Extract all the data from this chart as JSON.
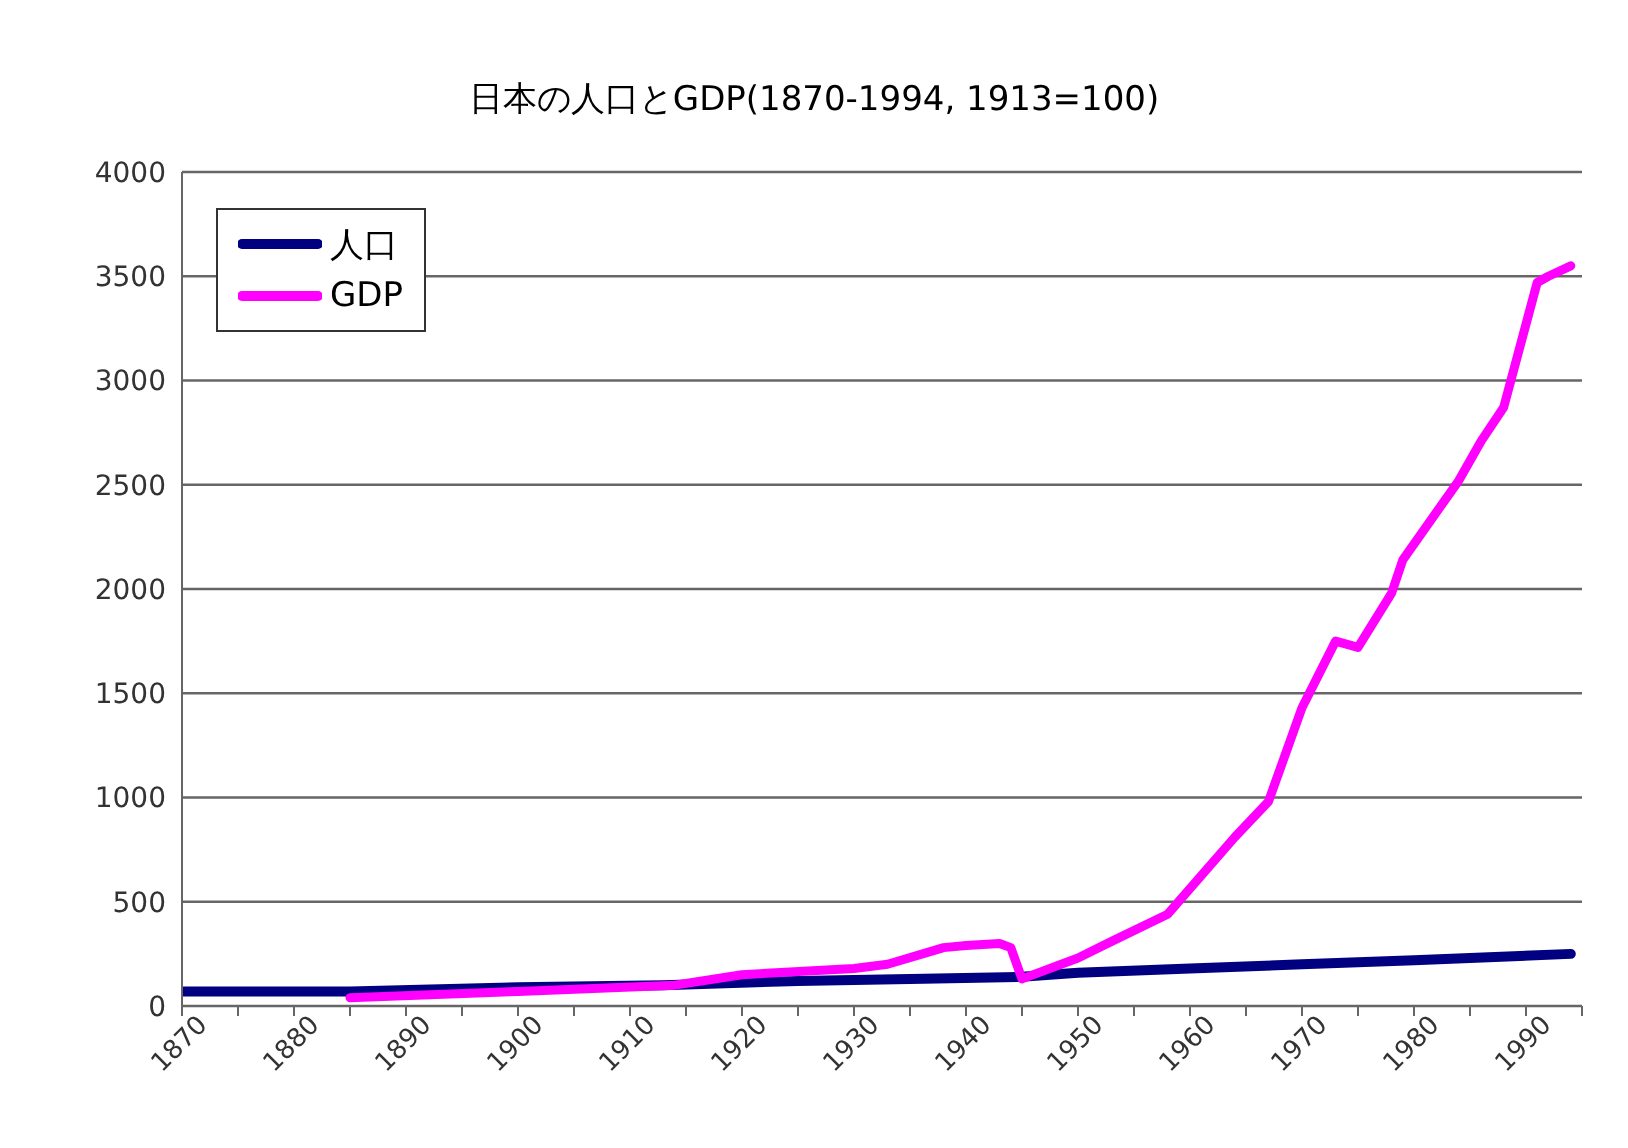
{
  "chart_data": {
    "type": "line",
    "title": "日本の人口とGDP(1870-1994, 1913=100)",
    "xlim": [
      1870,
      1995
    ],
    "xticks": [
      1870,
      {
        "value": 1875,
        "label": null
      },
      1880,
      {
        "value": 1885,
        "label": null
      },
      1890,
      {
        "value": 1895,
        "label": null
      },
      1900,
      {
        "value": 1905,
        "label": null
      },
      1910,
      {
        "value": 1915,
        "label": null
      },
      1920,
      {
        "value": 1925,
        "label": null
      },
      1930,
      {
        "value": 1935,
        "label": null
      },
      1940,
      {
        "value": 1945,
        "label": null
      },
      1950,
      {
        "value": 1955,
        "label": null
      },
      1960,
      {
        "value": 1965,
        "label": null
      },
      1970,
      {
        "value": 1975,
        "label": null
      },
      1980,
      {
        "value": 1985,
        "label": null
      },
      1990,
      {
        "value": 1995,
        "label": null
      }
    ],
    "ylim": [
      0,
      4000
    ],
    "yticks": [
      0,
      500,
      1000,
      1500,
      2000,
      2500,
      3000,
      3500,
      4000
    ],
    "grid": "y",
    "legend": "top left",
    "marker": "none",
    "line_style": "solid",
    "series": [
      {
        "name": "人口",
        "color": "#000080",
        "x": [
          1870,
          1885,
          1900,
          1913,
          1925,
          1935,
          1945,
          1950,
          1960,
          1970,
          1975,
          1980,
          1985,
          1994
        ],
        "values": [
          70,
          70,
          90,
          100,
          120,
          130,
          140,
          160,
          180,
          200,
          210,
          220,
          230,
          250
        ]
      },
      {
        "name": "GDP",
        "color": "#ff00ff",
        "x": [
          1885,
          1900,
          1914,
          1920,
          1930,
          1933,
          1938,
          1940,
          1943,
          1944,
          1945,
          1950,
          1953,
          1958,
          1964,
          1967,
          1970,
          1973,
          1975,
          1978,
          1979,
          1984,
          1986,
          1988,
          1989,
          1991,
          1992,
          1994
        ],
        "values": [
          40,
          70,
          100,
          150,
          180,
          200,
          280,
          290,
          300,
          280,
          130,
          230,
          310,
          440,
          810,
          980,
          1430,
          1750,
          1720,
          1980,
          2140,
          2520,
          2710,
          2870,
          3070,
          3470,
          3500,
          3550
        ]
      }
    ]
  }
}
